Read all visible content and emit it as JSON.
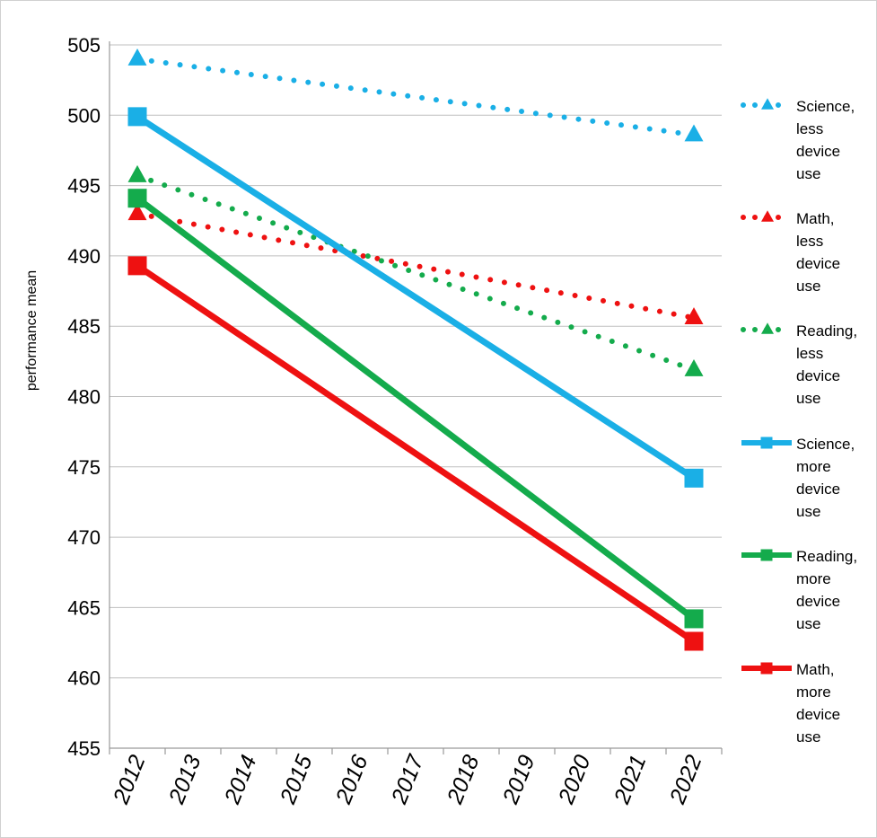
{
  "chart_data": {
    "type": "line",
    "title": "",
    "xlabel": "",
    "ylabel": "performance mean",
    "ylim": [
      455,
      505
    ],
    "yticks": [
      "455",
      "460",
      "465",
      "470",
      "475",
      "480",
      "485",
      "490",
      "495",
      "500",
      "505"
    ],
    "xticks": [
      "2012",
      "2013",
      "2014",
      "2015",
      "2016",
      "2017",
      "2018",
      "2019",
      "2020",
      "2021",
      "2022"
    ],
    "grid": true,
    "legend_position": "right",
    "series": [
      {
        "name": "Science, less device use",
        "legend_lines": [
          "Science,",
          "less",
          "device",
          "use"
        ],
        "color": "#1aafe6",
        "dash": "dotted",
        "marker": "triangle",
        "x": [
          2012,
          2022
        ],
        "values": [
          504.0,
          498.6
        ]
      },
      {
        "name": "Math, less device use",
        "legend_lines": [
          "Math,",
          "less",
          "device",
          "use"
        ],
        "color": "#ee1111",
        "dash": "dotted",
        "marker": "triangle",
        "x": [
          2012,
          2022
        ],
        "values": [
          493.0,
          485.6
        ]
      },
      {
        "name": "Reading, less device use",
        "legend_lines": [
          "Reading,",
          "less",
          "device",
          "use"
        ],
        "color": "#14ab4c",
        "dash": "dotted",
        "marker": "triangle",
        "x": [
          2012,
          2022
        ],
        "values": [
          495.7,
          481.9
        ]
      },
      {
        "name": "Science, more device use",
        "legend_lines": [
          "Science,",
          "more",
          "device",
          "use"
        ],
        "color": "#1aafe6",
        "dash": "solid",
        "marker": "square",
        "x": [
          2012,
          2022
        ],
        "values": [
          499.9,
          474.2
        ]
      },
      {
        "name": "Reading, more device use",
        "legend_lines": [
          "Reading,",
          "more",
          "device",
          "use"
        ],
        "color": "#14ab4c",
        "dash": "solid",
        "marker": "square",
        "x": [
          2012,
          2022
        ],
        "values": [
          494.1,
          464.2
        ]
      },
      {
        "name": "Math, more device use",
        "legend_lines": [
          "Math,",
          "more",
          "device",
          "use"
        ],
        "color": "#ee1111",
        "dash": "solid",
        "marker": "square",
        "x": [
          2012,
          2022
        ],
        "values": [
          489.3,
          462.6
        ]
      }
    ]
  }
}
